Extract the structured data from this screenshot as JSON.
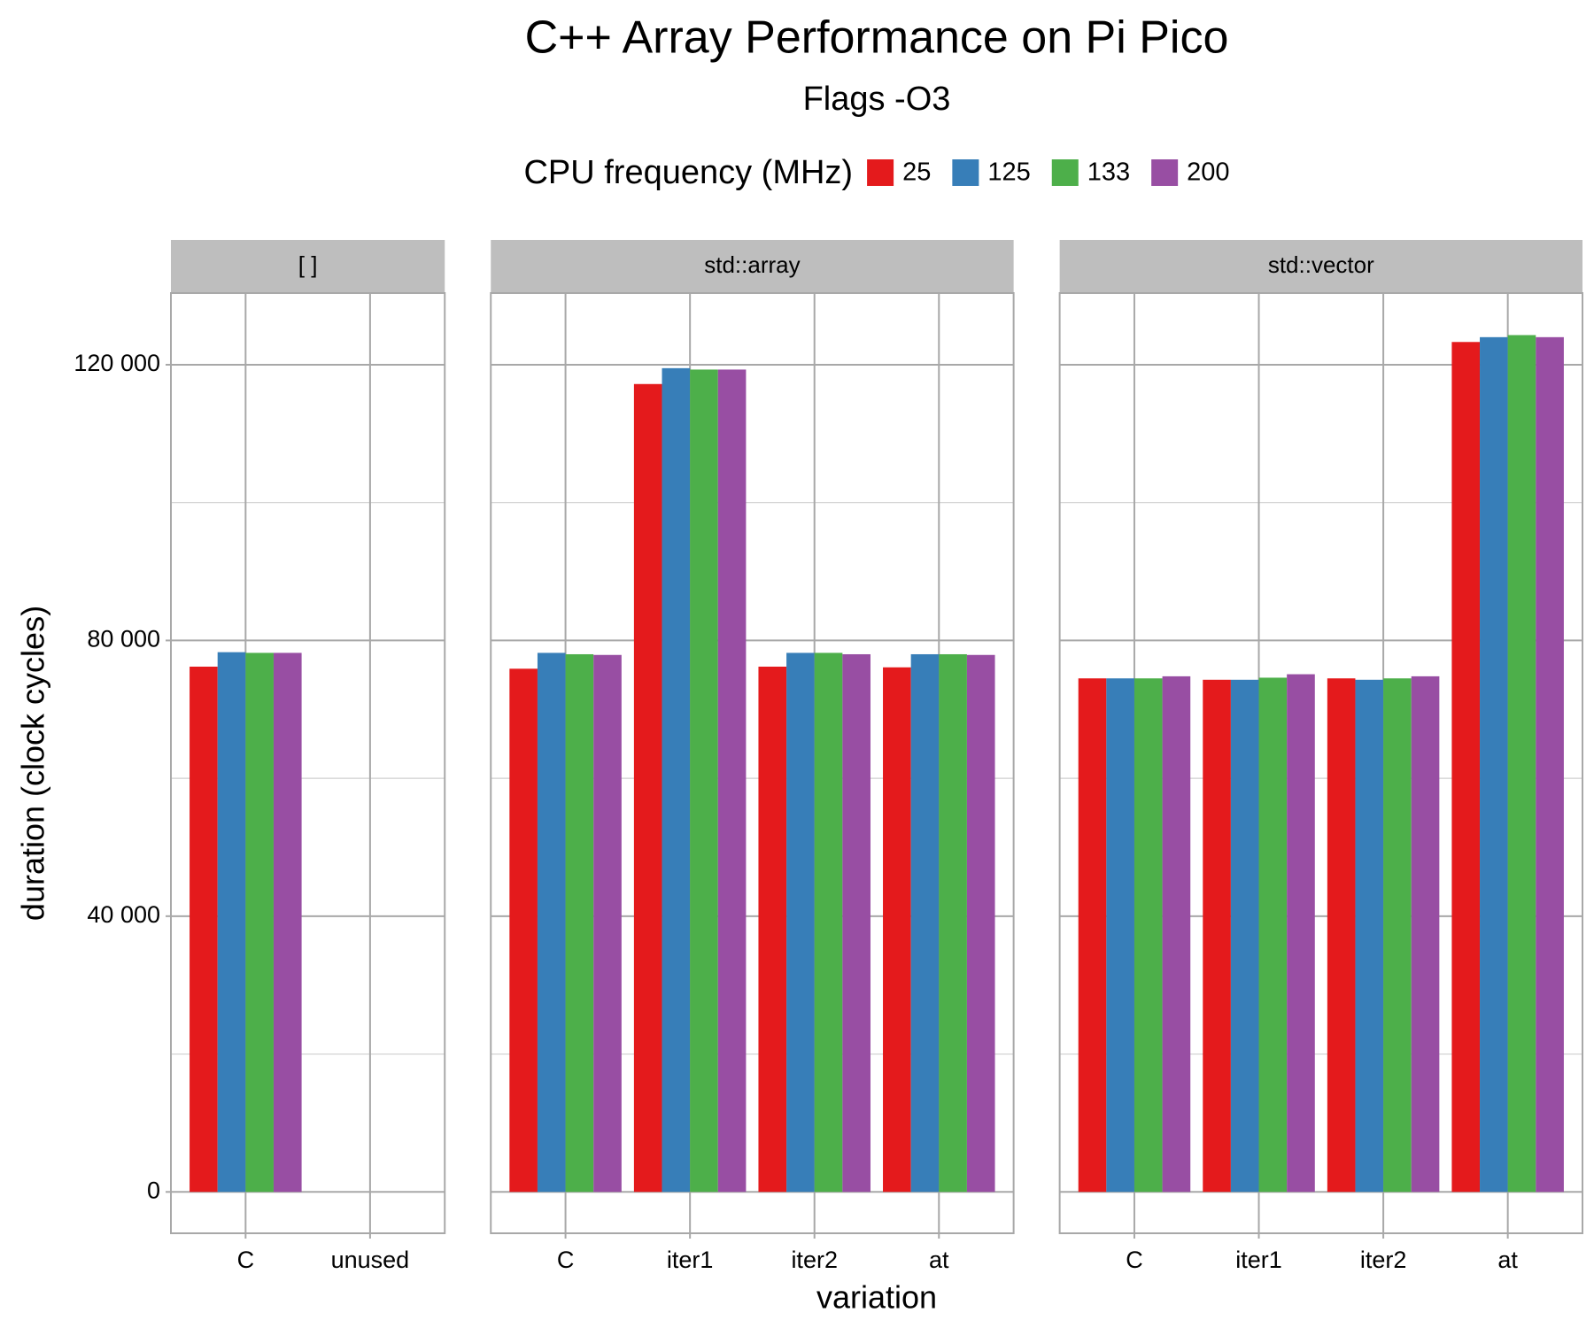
{
  "chart_data": {
    "type": "bar",
    "title": "C++ Array Performance on Pi Pico",
    "subtitle": "Flags -O3",
    "legend_title": "CPU frequency (MHz)",
    "legend_position": "top",
    "x_label": "variation",
    "y_label": "duration (clock cycles)",
    "series": [
      {
        "name": "25",
        "color": "#e41a1c"
      },
      {
        "name": "125",
        "color": "#377eb8"
      },
      {
        "name": "133",
        "color": "#4daf4a"
      },
      {
        "name": "200",
        "color": "#984ea3"
      }
    ],
    "facets": [
      {
        "title": "[ ]",
        "categories": [
          "C",
          "unused"
        ],
        "values": [
          [
            76200,
            null
          ],
          [
            78300,
            null
          ],
          [
            78200,
            null
          ],
          [
            78200,
            null
          ]
        ]
      },
      {
        "title": "std::array",
        "categories": [
          "C",
          "iter1",
          "iter2",
          "at"
        ],
        "values": [
          [
            75900,
            117200,
            76200,
            76100
          ],
          [
            78200,
            119500,
            78200,
            78000
          ],
          [
            78000,
            119300,
            78200,
            78000
          ],
          [
            77900,
            119300,
            78000,
            77900
          ]
        ]
      },
      {
        "title": "std::vector",
        "categories": [
          "C",
          "iter1",
          "iter2",
          "at"
        ],
        "values": [
          [
            74500,
            74300,
            74500,
            123300
          ],
          [
            74500,
            74300,
            74300,
            124000
          ],
          [
            74500,
            74600,
            74500,
            124300
          ],
          [
            74800,
            75100,
            74800,
            124000
          ]
        ]
      }
    ],
    "ylim": [
      -6000,
      130400
    ],
    "yticks": [
      0,
      {
        "value": 40000,
        "label": "40 000"
      },
      {
        "value": 80000,
        "label": "80 000"
      },
      {
        "value": 120000,
        "label": "120 000"
      }
    ],
    "minor_yticks": [
      20000,
      60000,
      100000
    ],
    "grid": true
  }
}
